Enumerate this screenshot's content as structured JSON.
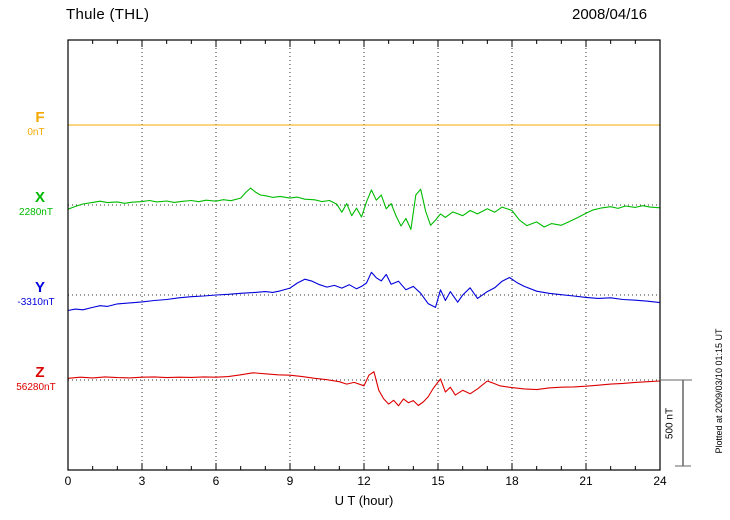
{
  "header": {
    "station": "Thule (THL)",
    "date": "2008/04/16"
  },
  "axis": {
    "ticks": [
      "0",
      "3",
      "6",
      "9",
      "12",
      "15",
      "18",
      "21",
      "24"
    ],
    "xlabel": "U T (hour)"
  },
  "scale_bar": {
    "label": "500 nT",
    "nT": 500
  },
  "footer_note": "Plotted at 2009/03/10 01:15 UT",
  "colors": {
    "F": "#f5a800",
    "X": "#00bb00",
    "Y": "#0000dd",
    "Z": "#dd0000",
    "frame": "#000000",
    "grid": "#333333",
    "scalebar": "#666666"
  },
  "chart_data": {
    "type": "line",
    "title": "Thule (THL) magnetogram 2008/04/16",
    "xlabel": "U T (hour)",
    "xlim": [
      0,
      24
    ],
    "x_unit": "hour",
    "grid": "dotted vertical every 3 h, dotted horizontal at each component baseline",
    "scale_bar_nT": 500,
    "series": [
      {
        "name": "F",
        "baseline_label": "0nT",
        "baseline_nT": 0,
        "color": "#f5a800",
        "points": [
          [
            0,
            0
          ],
          [
            24,
            0
          ]
        ]
      },
      {
        "name": "X",
        "baseline_label": "2280nT",
        "baseline_nT": 2280,
        "color": "#00bb00",
        "points": [
          [
            0,
            -25
          ],
          [
            0.3,
            -8
          ],
          [
            0.6,
            6
          ],
          [
            1,
            15
          ],
          [
            1.3,
            22
          ],
          [
            1.6,
            14
          ],
          [
            2,
            18
          ],
          [
            2.3,
            10
          ],
          [
            2.6,
            16
          ],
          [
            3,
            20
          ],
          [
            3.3,
            26
          ],
          [
            3.6,
            18
          ],
          [
            4,
            23
          ],
          [
            4.3,
            15
          ],
          [
            4.6,
            21
          ],
          [
            5,
            26
          ],
          [
            5.3,
            19
          ],
          [
            5.6,
            28
          ],
          [
            6,
            22
          ],
          [
            6.3,
            31
          ],
          [
            6.6,
            25
          ],
          [
            7,
            40
          ],
          [
            7.2,
            72
          ],
          [
            7.4,
            98
          ],
          [
            7.6,
            75
          ],
          [
            7.8,
            58
          ],
          [
            8,
            54
          ],
          [
            8.3,
            44
          ],
          [
            8.6,
            50
          ],
          [
            9,
            40
          ],
          [
            9.3,
            46
          ],
          [
            9.6,
            34
          ],
          [
            10,
            30
          ],
          [
            10.3,
            20
          ],
          [
            10.6,
            26
          ],
          [
            10.9,
            4
          ],
          [
            11.1,
            -42
          ],
          [
            11.3,
            8
          ],
          [
            11.5,
            -62
          ],
          [
            11.7,
            -18
          ],
          [
            11.9,
            -70
          ],
          [
            12.1,
            18
          ],
          [
            12.3,
            88
          ],
          [
            12.5,
            28
          ],
          [
            12.7,
            58
          ],
          [
            12.9,
            -22
          ],
          [
            13.1,
            8
          ],
          [
            13.3,
            -64
          ],
          [
            13.5,
            -122
          ],
          [
            13.7,
            -78
          ],
          [
            13.9,
            -142
          ],
          [
            14.1,
            58
          ],
          [
            14.3,
            92
          ],
          [
            14.5,
            -38
          ],
          [
            14.7,
            -118
          ],
          [
            14.9,
            -88
          ],
          [
            15.1,
            -52
          ],
          [
            15.3,
            -72
          ],
          [
            15.6,
            -40
          ],
          [
            16,
            -62
          ],
          [
            16.3,
            -32
          ],
          [
            16.6,
            -52
          ],
          [
            17,
            -22
          ],
          [
            17.3,
            -42
          ],
          [
            17.6,
            -12
          ],
          [
            18,
            -32
          ],
          [
            18.3,
            -88
          ],
          [
            18.6,
            -120
          ],
          [
            19,
            -98
          ],
          [
            19.3,
            -128
          ],
          [
            19.6,
            -108
          ],
          [
            20,
            -118
          ],
          [
            20.3,
            -98
          ],
          [
            20.6,
            -78
          ],
          [
            21,
            -48
          ],
          [
            21.3,
            -28
          ],
          [
            21.6,
            -18
          ],
          [
            22,
            -10
          ],
          [
            22.3,
            -20
          ],
          [
            22.6,
            -6
          ],
          [
            23,
            -14
          ],
          [
            23.3,
            -4
          ],
          [
            23.6,
            -12
          ],
          [
            24,
            -16
          ]
        ]
      },
      {
        "name": "Y",
        "baseline_label": "-3310nT",
        "baseline_nT": -3310,
        "color": "#0000dd",
        "points": [
          [
            0,
            -90
          ],
          [
            0.3,
            -82
          ],
          [
            0.6,
            -86
          ],
          [
            1,
            -72
          ],
          [
            1.3,
            -62
          ],
          [
            1.6,
            -66
          ],
          [
            2,
            -52
          ],
          [
            2.5,
            -46
          ],
          [
            3,
            -40
          ],
          [
            3.5,
            -32
          ],
          [
            4,
            -26
          ],
          [
            4.5,
            -16
          ],
          [
            5,
            -10
          ],
          [
            5.5,
            -6
          ],
          [
            6,
            0
          ],
          [
            6.5,
            4
          ],
          [
            7,
            10
          ],
          [
            7.5,
            14
          ],
          [
            8,
            20
          ],
          [
            8.3,
            15
          ],
          [
            8.6,
            24
          ],
          [
            9,
            40
          ],
          [
            9.3,
            70
          ],
          [
            9.6,
            92
          ],
          [
            9.9,
            80
          ],
          [
            10.2,
            60
          ],
          [
            10.5,
            46
          ],
          [
            10.8,
            56
          ],
          [
            11.1,
            40
          ],
          [
            11.4,
            60
          ],
          [
            11.7,
            36
          ],
          [
            11.9,
            50
          ],
          [
            12.1,
            70
          ],
          [
            12.3,
            132
          ],
          [
            12.5,
            100
          ],
          [
            12.7,
            82
          ],
          [
            12.9,
            120
          ],
          [
            13.1,
            62
          ],
          [
            13.4,
            80
          ],
          [
            13.7,
            30
          ],
          [
            14,
            50
          ],
          [
            14.3,
            10
          ],
          [
            14.6,
            -50
          ],
          [
            14.9,
            -72
          ],
          [
            15.1,
            30
          ],
          [
            15.3,
            -32
          ],
          [
            15.5,
            20
          ],
          [
            15.8,
            -42
          ],
          [
            16,
            0
          ],
          [
            16.3,
            42
          ],
          [
            16.6,
            -20
          ],
          [
            17,
            20
          ],
          [
            17.3,
            42
          ],
          [
            17.6,
            80
          ],
          [
            17.9,
            102
          ],
          [
            18.2,
            72
          ],
          [
            18.5,
            50
          ],
          [
            19,
            22
          ],
          [
            19.5,
            10
          ],
          [
            20,
            2
          ],
          [
            20.5,
            -6
          ],
          [
            21,
            -14
          ],
          [
            21.5,
            -20
          ],
          [
            22,
            -16
          ],
          [
            22.5,
            -26
          ],
          [
            23,
            -30
          ],
          [
            23.5,
            -36
          ],
          [
            24,
            -44
          ]
        ]
      },
      {
        "name": "Z",
        "baseline_label": "56280nT",
        "baseline_nT": 56280,
        "color": "#dd0000",
        "points": [
          [
            0,
            10
          ],
          [
            0.5,
            16
          ],
          [
            1,
            12
          ],
          [
            1.5,
            18
          ],
          [
            2,
            14
          ],
          [
            2.5,
            12
          ],
          [
            3,
            16
          ],
          [
            3.5,
            18
          ],
          [
            4,
            14
          ],
          [
            4.5,
            16
          ],
          [
            5,
            15
          ],
          [
            5.5,
            18
          ],
          [
            6,
            16
          ],
          [
            6.5,
            20
          ],
          [
            7,
            30
          ],
          [
            7.5,
            42
          ],
          [
            8,
            36
          ],
          [
            8.5,
            30
          ],
          [
            9,
            28
          ],
          [
            9.5,
            20
          ],
          [
            10,
            10
          ],
          [
            10.5,
            2
          ],
          [
            11,
            -10
          ],
          [
            11.3,
            -24
          ],
          [
            11.6,
            -14
          ],
          [
            12,
            -34
          ],
          [
            12.2,
            28
          ],
          [
            12.4,
            48
          ],
          [
            12.6,
            -60
          ],
          [
            12.8,
            -110
          ],
          [
            13,
            -140
          ],
          [
            13.2,
            -118
          ],
          [
            13.4,
            -150
          ],
          [
            13.6,
            -110
          ],
          [
            13.8,
            -132
          ],
          [
            14,
            -120
          ],
          [
            14.2,
            -148
          ],
          [
            14.4,
            -128
          ],
          [
            14.6,
            -98
          ],
          [
            14.8,
            -50
          ],
          [
            15,
            -12
          ],
          [
            15.1,
            6
          ],
          [
            15.3,
            -70
          ],
          [
            15.5,
            -42
          ],
          [
            15.7,
            -88
          ],
          [
            16,
            -60
          ],
          [
            16.3,
            -80
          ],
          [
            16.6,
            -52
          ],
          [
            17,
            -6
          ],
          [
            17.2,
            -16
          ],
          [
            17.5,
            -34
          ],
          [
            18,
            -44
          ],
          [
            18.5,
            -52
          ],
          [
            19,
            -56
          ],
          [
            19.5,
            -46
          ],
          [
            20,
            -42
          ],
          [
            20.5,
            -40
          ],
          [
            21,
            -36
          ],
          [
            21.5,
            -30
          ],
          [
            22,
            -24
          ],
          [
            22.5,
            -20
          ],
          [
            23,
            -14
          ],
          [
            23.5,
            -10
          ],
          [
            24,
            -6
          ]
        ]
      }
    ]
  }
}
